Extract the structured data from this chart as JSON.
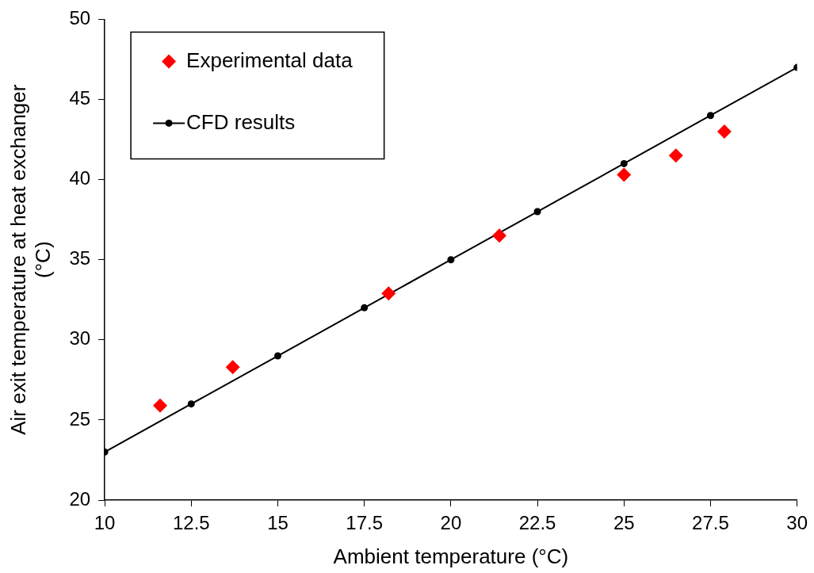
{
  "chart_data": {
    "type": "scatter",
    "xlabel": "Ambient temperature (°C)",
    "ylabel": "Air exit temperature at heat exchanger (°C)",
    "xlim": [
      10,
      30
    ],
    "xticks": [
      10,
      12.5,
      15,
      17.5,
      20,
      22.5,
      25,
      27.5,
      30
    ],
    "ylim": [
      20,
      50
    ],
    "yticks": [
      20,
      25,
      30,
      35,
      40,
      45,
      50
    ],
    "grid": false,
    "legend": "top left",
    "series": [
      {
        "name": "Experimental data",
        "type": "scatter",
        "color": "#ff0000",
        "marker": "diamond",
        "x": [
          11.6,
          13.7,
          18.2,
          21.4,
          25.0,
          26.5,
          27.9
        ],
        "values": [
          25.9,
          28.3,
          32.9,
          36.5,
          40.3,
          41.5,
          43.0
        ]
      },
      {
        "name": "CFD results",
        "type": "line",
        "color": "#000000",
        "marker": "circle",
        "line_style": "solid",
        "x": [
          10,
          12.5,
          15,
          17.5,
          20,
          22.5,
          25,
          27.5,
          30
        ],
        "values": [
          23,
          26,
          29,
          32,
          35,
          38,
          41,
          44,
          47
        ]
      }
    ]
  }
}
